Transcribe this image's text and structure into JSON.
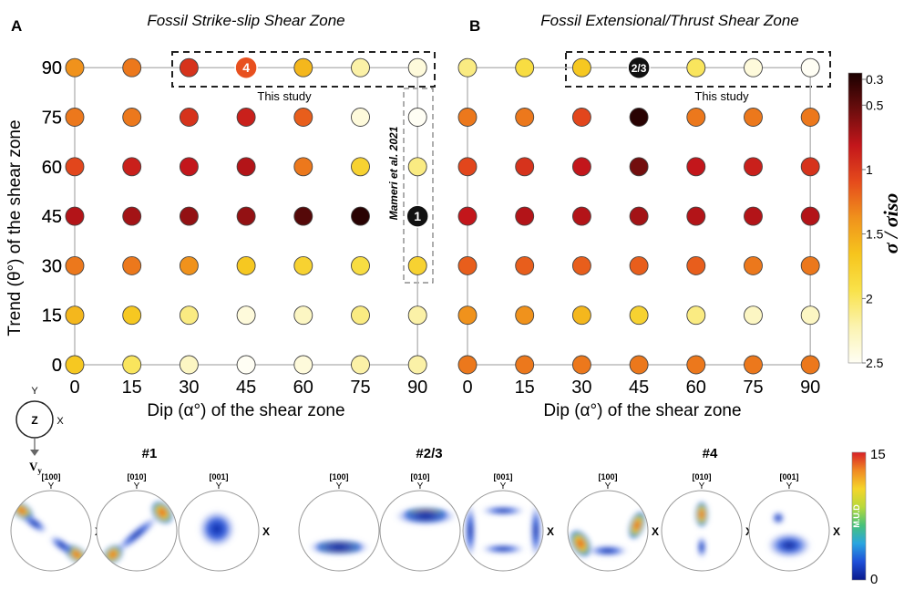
{
  "panelA": {
    "letter": "A",
    "title": "Fossil Strike-slip Shear Zone",
    "ylabel": "Trend (θ°) of the shear zone",
    "xlabel": "Dip (α°) of the shear zone",
    "box_label": "This study",
    "mameri_label": "Mameri et al. 2021",
    "markers": [
      {
        "text": "4",
        "dip": 45,
        "trend": 90,
        "fill": "#e8501f",
        "textColor": "#ffffff"
      },
      {
        "text": "1",
        "dip": 90,
        "trend": 45,
        "fill": "#111111",
        "textColor": "#ffffff"
      }
    ]
  },
  "panelB": {
    "letter": "B",
    "title": "Fossil Extensional/Thrust Shear Zone",
    "xlabel": "Dip (α°) of the shear zone",
    "box_label": "This study",
    "markers": [
      {
        "text": "2/3",
        "dip": 45,
        "trend": 90,
        "fill": "#111111",
        "textColor": "#ffffff"
      }
    ]
  },
  "colorbar1": {
    "title": "σ / σiso",
    "ticks": [
      "0.3",
      "0.5",
      "1",
      "1.5",
      "2",
      "2.5"
    ],
    "ticks_values": [
      0.3,
      0.5,
      1,
      1.5,
      2,
      2.5
    ],
    "min": 0.3,
    "max": 2.5,
    "stops": [
      "#1a0000",
      "#6b0d0d",
      "#c3161b",
      "#e54b1c",
      "#f0921c",
      "#f6c51d",
      "#f9e24a",
      "#fbf3b0",
      "#fffef4"
    ]
  },
  "colorbar2": {
    "title": "M.U.D",
    "ticks": [
      "15",
      "0"
    ],
    "stops": [
      "#0a1a8c",
      "#1f4fd8",
      "#2aa5e0",
      "#47c27a",
      "#b8d93b",
      "#f5d52a",
      "#f08a24",
      "#d81f26"
    ]
  },
  "axis_icon": {
    "center": "Z",
    "up": "Y",
    "right": "X",
    "vel": "V",
    "vel_sub": "y"
  },
  "pole_figures": {
    "groups": [
      {
        "label": "#1",
        "plots": [
          {
            "label": "[100]",
            "y": "Y",
            "x": "X"
          },
          {
            "label": "[010]",
            "y": "Y",
            "x": "X"
          },
          {
            "label": "[001]",
            "y": "Y",
            "x": "X"
          }
        ]
      },
      {
        "label": "#2/3",
        "plots": [
          {
            "label": "[100]",
            "y": "Y",
            "x": "X"
          },
          {
            "label": "[010]",
            "y": "Y",
            "x": "X"
          },
          {
            "label": "[001]",
            "y": "Y",
            "x": "X"
          }
        ]
      },
      {
        "label": "#4",
        "plots": [
          {
            "label": "[100]",
            "y": "Y",
            "x": "X"
          },
          {
            "label": "[010]",
            "y": "Y",
            "x": "X"
          },
          {
            "label": "[001]",
            "y": "Y",
            "x": "X"
          }
        ]
      }
    ]
  },
  "chart_data": [
    {
      "type": "scatter",
      "title": "Fossil Strike-slip Shear Zone",
      "xlabel": "Dip (α°) of the shear zone",
      "ylabel": "Trend (θ°) of the shear zone",
      "x": [
        0,
        15,
        30,
        45,
        60,
        75,
        90
      ],
      "y": [
        0,
        15,
        30,
        45,
        60,
        75,
        90
      ],
      "xlim": [
        0,
        90
      ],
      "ylim": [
        0,
        90
      ],
      "color_variable": "σ / σiso",
      "values_rows_trend_desc": [
        [
          1.4,
          1.3,
          1.0,
          1.1,
          1.6,
          2.2,
          2.4
        ],
        [
          1.3,
          1.3,
          1.0,
          0.9,
          1.2,
          2.4,
          2.5
        ],
        [
          1.1,
          0.9,
          0.85,
          0.8,
          1.3,
          1.8,
          2.1
        ],
        [
          0.8,
          0.75,
          0.7,
          0.7,
          0.5,
          0.35,
          null
        ],
        [
          1.3,
          1.3,
          1.4,
          1.7,
          1.8,
          1.9,
          1.8
        ],
        [
          1.6,
          1.7,
          2.1,
          2.4,
          2.3,
          2.1,
          2.2
        ],
        [
          1.7,
          2.0,
          2.3,
          2.5,
          2.4,
          2.2,
          2.2
        ]
      ]
    },
    {
      "type": "scatter",
      "title": "Fossil Extensional/Thrust Shear Zone",
      "xlabel": "Dip (α°) of the shear zone",
      "x": [
        0,
        15,
        30,
        45,
        60,
        75,
        90
      ],
      "y": [
        0,
        15,
        30,
        45,
        60,
        75,
        90
      ],
      "xlim": [
        0,
        90
      ],
      "ylim": [
        0,
        90
      ],
      "color_variable": "σ / σiso",
      "values_rows_trend_desc": [
        [
          2.1,
          1.9,
          1.7,
          null,
          2.0,
          2.4,
          2.5
        ],
        [
          1.3,
          1.3,
          1.1,
          0.35,
          1.3,
          1.3,
          1.3
        ],
        [
          1.1,
          1.0,
          0.85,
          0.6,
          0.85,
          0.9,
          1.0
        ],
        [
          0.85,
          0.8,
          0.8,
          0.75,
          0.8,
          0.8,
          0.8
        ],
        [
          1.2,
          1.2,
          1.2,
          1.2,
          1.2,
          1.3,
          1.3
        ],
        [
          1.4,
          1.4,
          1.6,
          1.8,
          2.1,
          2.3,
          2.3
        ],
        [
          1.3,
          1.3,
          1.3,
          1.3,
          1.3,
          1.3,
          1.3
        ]
      ]
    }
  ]
}
